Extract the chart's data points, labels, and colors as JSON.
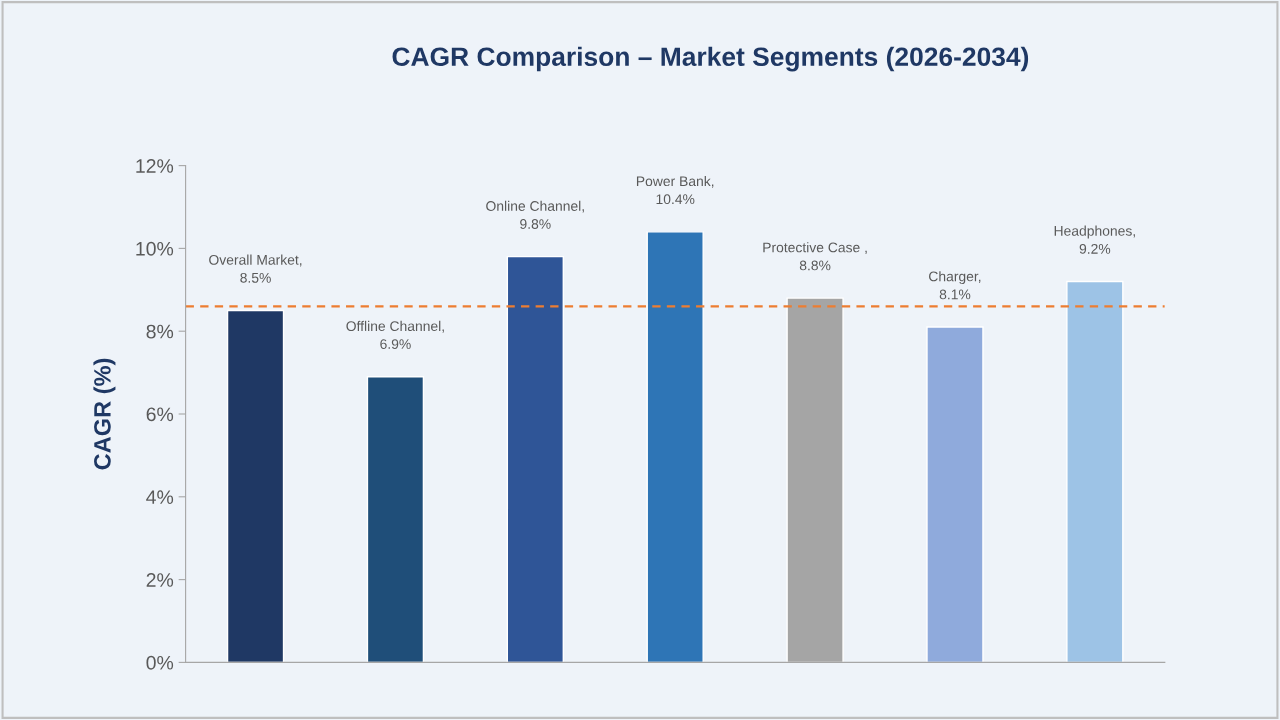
{
  "chart_data": {
    "type": "bar",
    "title": "CAGR Comparison – Market Segments (2026-2034)",
    "ylabel": "CAGR (%)",
    "categories": [
      null,
      null,
      null,
      null,
      null,
      null,
      null
    ],
    "values": [
      8.5,
      6.9,
      9.8,
      10.4,
      8.8,
      8.1,
      9.2
    ],
    "colors": [
      "#1f3864",
      "#1f4e79",
      "#2f5597",
      "#2e75b6",
      "#a5a5a5",
      "#8faadc",
      "#9dc3e6"
    ],
    "value_labels": [
      "Overall Market,\n8.5%",
      "Offline Channel,\n6.9%",
      "Online Channel,\n9.8%",
      "Power Bank,\n10.4%",
      "Protective Case ,\n8.8%",
      "Charger,\n8.1%",
      "Headphones,\n9.2%"
    ],
    "ylim": [
      0,
      12
    ],
    "yticks": [
      {
        "value": 0,
        "label": "0%"
      },
      {
        "value": 2,
        "label": "2%"
      },
      {
        "value": 4,
        "label": "4%"
      },
      {
        "value": 6,
        "label": "6%"
      },
      {
        "value": 8,
        "label": "8%"
      },
      {
        "value": 10,
        "label": "10%"
      },
      {
        "value": 12,
        "label": "12%"
      }
    ],
    "tick_labels": "y",
    "grid": false,
    "ref_lines": [
      {
        "axis": "y",
        "value": 8.6,
        "color": "#ed7d31",
        "line_style": "dashed"
      }
    ]
  }
}
